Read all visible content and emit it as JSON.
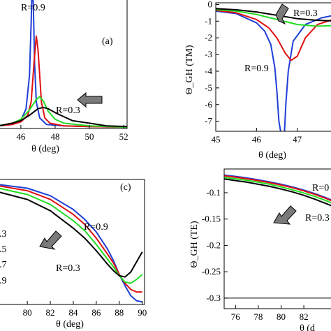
{
  "chart_data": [
    {
      "type": "line",
      "panel": "a",
      "title": "",
      "xlabel": "θ (deg)",
      "ylabel": "",
      "xlim": [
        44.7,
        52.2
      ],
      "ylim": [
        0,
        1
      ],
      "xticks": [
        46,
        48,
        50,
        52
      ],
      "yticks": [],
      "panel_label": "(a)",
      "annotations": [
        "R=0.9",
        "R=0.3"
      ],
      "series": [
        {
          "color": "#1f3fd6",
          "x": [
            44.7,
            45.5,
            46.0,
            46.3,
            46.5,
            46.6,
            46.65,
            46.7,
            46.75,
            46.8,
            46.9,
            47.1,
            47.5,
            48.5,
            50,
            52.2
          ],
          "y": [
            0.02,
            0.03,
            0.06,
            0.15,
            0.4,
            0.8,
            1.05,
            1.05,
            0.8,
            0.5,
            0.2,
            0.08,
            0.03,
            0.02,
            0.015,
            0.01
          ]
        },
        {
          "color": "#e01010",
          "x": [
            44.7,
            45.5,
            46.0,
            46.4,
            46.6,
            46.8,
            46.9,
            47.0,
            47.1,
            47.2,
            47.4,
            47.7,
            48.5,
            50,
            52.2
          ],
          "y": [
            0.02,
            0.03,
            0.05,
            0.1,
            0.2,
            0.55,
            0.7,
            0.6,
            0.4,
            0.2,
            0.08,
            0.04,
            0.02,
            0.015,
            0.01
          ]
        },
        {
          "color": "#22dd22",
          "x": [
            44.7,
            45.5,
            46.0,
            46.5,
            46.9,
            47.1,
            47.3,
            47.6,
            48.0,
            48.5,
            50,
            52.2
          ],
          "y": [
            0.02,
            0.04,
            0.07,
            0.14,
            0.22,
            0.24,
            0.21,
            0.13,
            0.07,
            0.04,
            0.02,
            0.01
          ]
        },
        {
          "color": "#000000",
          "x": [
            44.7,
            45.5,
            46.0,
            46.5,
            47.0,
            47.3,
            47.6,
            48.0,
            48.5,
            49.0,
            50,
            51,
            52.2
          ],
          "y": [
            0.02,
            0.04,
            0.06,
            0.1,
            0.15,
            0.16,
            0.15,
            0.12,
            0.09,
            0.06,
            0.04,
            0.02,
            0.015
          ]
        }
      ]
    },
    {
      "type": "line",
      "panel": "b",
      "title": "",
      "xlabel": "θ (deg)",
      "ylabel": "Θ_GH (TM)",
      "xlim": [
        45,
        48
      ],
      "ylim": [
        -7.6,
        0.1
      ],
      "xticks": [
        45,
        46,
        47
      ],
      "yticks": [
        0,
        -1,
        -2,
        -3,
        -4,
        -5,
        -6,
        -7
      ],
      "annotations": [
        "R=0.3",
        "R=0.9"
      ],
      "series": [
        {
          "color": "#1f3fd6",
          "x": [
            45,
            45.5,
            46,
            46.2,
            46.35,
            46.45,
            46.5,
            46.55,
            46.62,
            46.68,
            46.72,
            46.78,
            46.9,
            47.2,
            47.6,
            48
          ],
          "y": [
            -0.4,
            -0.55,
            -1.1,
            -1.6,
            -2.4,
            -3.8,
            -5.2,
            -7.0,
            -8.0,
            -8.0,
            -6.0,
            -4.0,
            -2.2,
            -1.2,
            -0.8,
            -0.6
          ]
        },
        {
          "color": "#e01010",
          "x": [
            45,
            45.5,
            46,
            46.3,
            46.5,
            46.7,
            46.85,
            47.0,
            47.2,
            47.5,
            48
          ],
          "y": [
            -0.35,
            -0.5,
            -0.9,
            -1.4,
            -2.0,
            -2.9,
            -3.35,
            -3.1,
            -2.0,
            -1.2,
            -0.8
          ]
        },
        {
          "color": "#22dd22",
          "x": [
            45,
            45.5,
            46,
            46.5,
            47.0,
            47.5,
            48
          ],
          "y": [
            -0.3,
            -0.4,
            -0.6,
            -0.9,
            -1.2,
            -1.3,
            -1.25
          ]
        },
        {
          "color": "#000000",
          "x": [
            45,
            45.5,
            46,
            46.5,
            47.0,
            47.5,
            48
          ],
          "y": [
            -0.25,
            -0.32,
            -0.45,
            -0.65,
            -0.85,
            -0.95,
            -1.0
          ]
        }
      ]
    },
    {
      "type": "line",
      "panel": "c",
      "title": "",
      "xlabel": "θ (deg)",
      "ylabel": "",
      "xlim": [
        77.5,
        90.2
      ],
      "ylim": [
        0,
        1
      ],
      "xticks": [
        80,
        82,
        84,
        86,
        88,
        90
      ],
      "yticks": [],
      "panel_label": "(c)",
      "annotations": [
        "R=0.9",
        "R=0.3"
      ],
      "legend_fragments": [
        ".3",
        ".5",
        ".7",
        ".9"
      ],
      "series": [
        {
          "color": "#1f3fd6",
          "x": [
            77.5,
            80,
            82,
            84,
            85,
            86,
            87,
            87.5,
            88,
            88.5,
            89,
            89.5,
            90
          ],
          "y": [
            0.96,
            0.93,
            0.87,
            0.76,
            0.68,
            0.58,
            0.44,
            0.35,
            0.24,
            0.15,
            0.07,
            0.03,
            0.02
          ]
        },
        {
          "color": "#e01010",
          "x": [
            77.5,
            80,
            82,
            84,
            85,
            86,
            87,
            87.5,
            88,
            88.5,
            89,
            89.5,
            90
          ],
          "y": [
            0.95,
            0.91,
            0.84,
            0.72,
            0.64,
            0.53,
            0.4,
            0.33,
            0.24,
            0.17,
            0.12,
            0.1,
            0.1
          ]
        },
        {
          "color": "#22dd22",
          "x": [
            77.5,
            80,
            82,
            84,
            85,
            86,
            87,
            87.5,
            88,
            88.5,
            89,
            89.5,
            90
          ],
          "y": [
            0.93,
            0.88,
            0.8,
            0.67,
            0.59,
            0.48,
            0.36,
            0.3,
            0.23,
            0.18,
            0.17,
            0.2,
            0.24
          ]
        },
        {
          "color": "#000000",
          "x": [
            77.5,
            80,
            82,
            84,
            85,
            86,
            87,
            87.5,
            88,
            88.5,
            89,
            89.5,
            90
          ],
          "y": [
            0.9,
            0.84,
            0.75,
            0.61,
            0.53,
            0.43,
            0.32,
            0.27,
            0.23,
            0.22,
            0.26,
            0.34,
            0.42
          ]
        }
      ]
    },
    {
      "type": "line",
      "panel": "d",
      "title": "",
      "xlabel": "θ (d",
      "ylabel": "Θ_GH (TE)",
      "xlim": [
        75,
        85
      ],
      "ylim": [
        -0.32,
        -0.055
      ],
      "xticks": [
        76,
        78,
        80,
        82
      ],
      "yticks": [
        -0.1,
        -0.15,
        -0.2,
        -0.25,
        -0.3
      ],
      "annotations": [
        "R=0",
        "R=0.3"
      ],
      "reference_line": -0.3,
      "series": [
        {
          "color": "#1f3fd6",
          "x": [
            75,
            76,
            77,
            78,
            79,
            80,
            81,
            82,
            83,
            84,
            85
          ],
          "y": [
            -0.0665,
            -0.069,
            -0.072,
            -0.0755,
            -0.0795,
            -0.084,
            -0.089,
            -0.095,
            -0.102,
            -0.11,
            -0.119
          ]
        },
        {
          "color": "#e01010",
          "x": [
            75,
            76,
            77,
            78,
            79,
            80,
            81,
            82,
            83,
            84,
            85
          ],
          "y": [
            -0.068,
            -0.0705,
            -0.0735,
            -0.077,
            -0.081,
            -0.0855,
            -0.0905,
            -0.0965,
            -0.1035,
            -0.1115,
            -0.1205
          ]
        },
        {
          "color": "#22dd22",
          "x": [
            75,
            76,
            77,
            78,
            79,
            80,
            81,
            82,
            83,
            84,
            85
          ],
          "y": [
            -0.071,
            -0.0735,
            -0.0765,
            -0.08,
            -0.084,
            -0.089,
            -0.0945,
            -0.1005,
            -0.1075,
            -0.1155,
            -0.1245
          ]
        },
        {
          "color": "#000000",
          "x": [
            75,
            76,
            77,
            78,
            79,
            80,
            81,
            82,
            83,
            84,
            85
          ],
          "y": [
            -0.074,
            -0.077,
            -0.08,
            -0.084,
            -0.088,
            -0.093,
            -0.0985,
            -0.105,
            -0.1125,
            -0.121,
            -0.13
          ]
        }
      ]
    }
  ]
}
